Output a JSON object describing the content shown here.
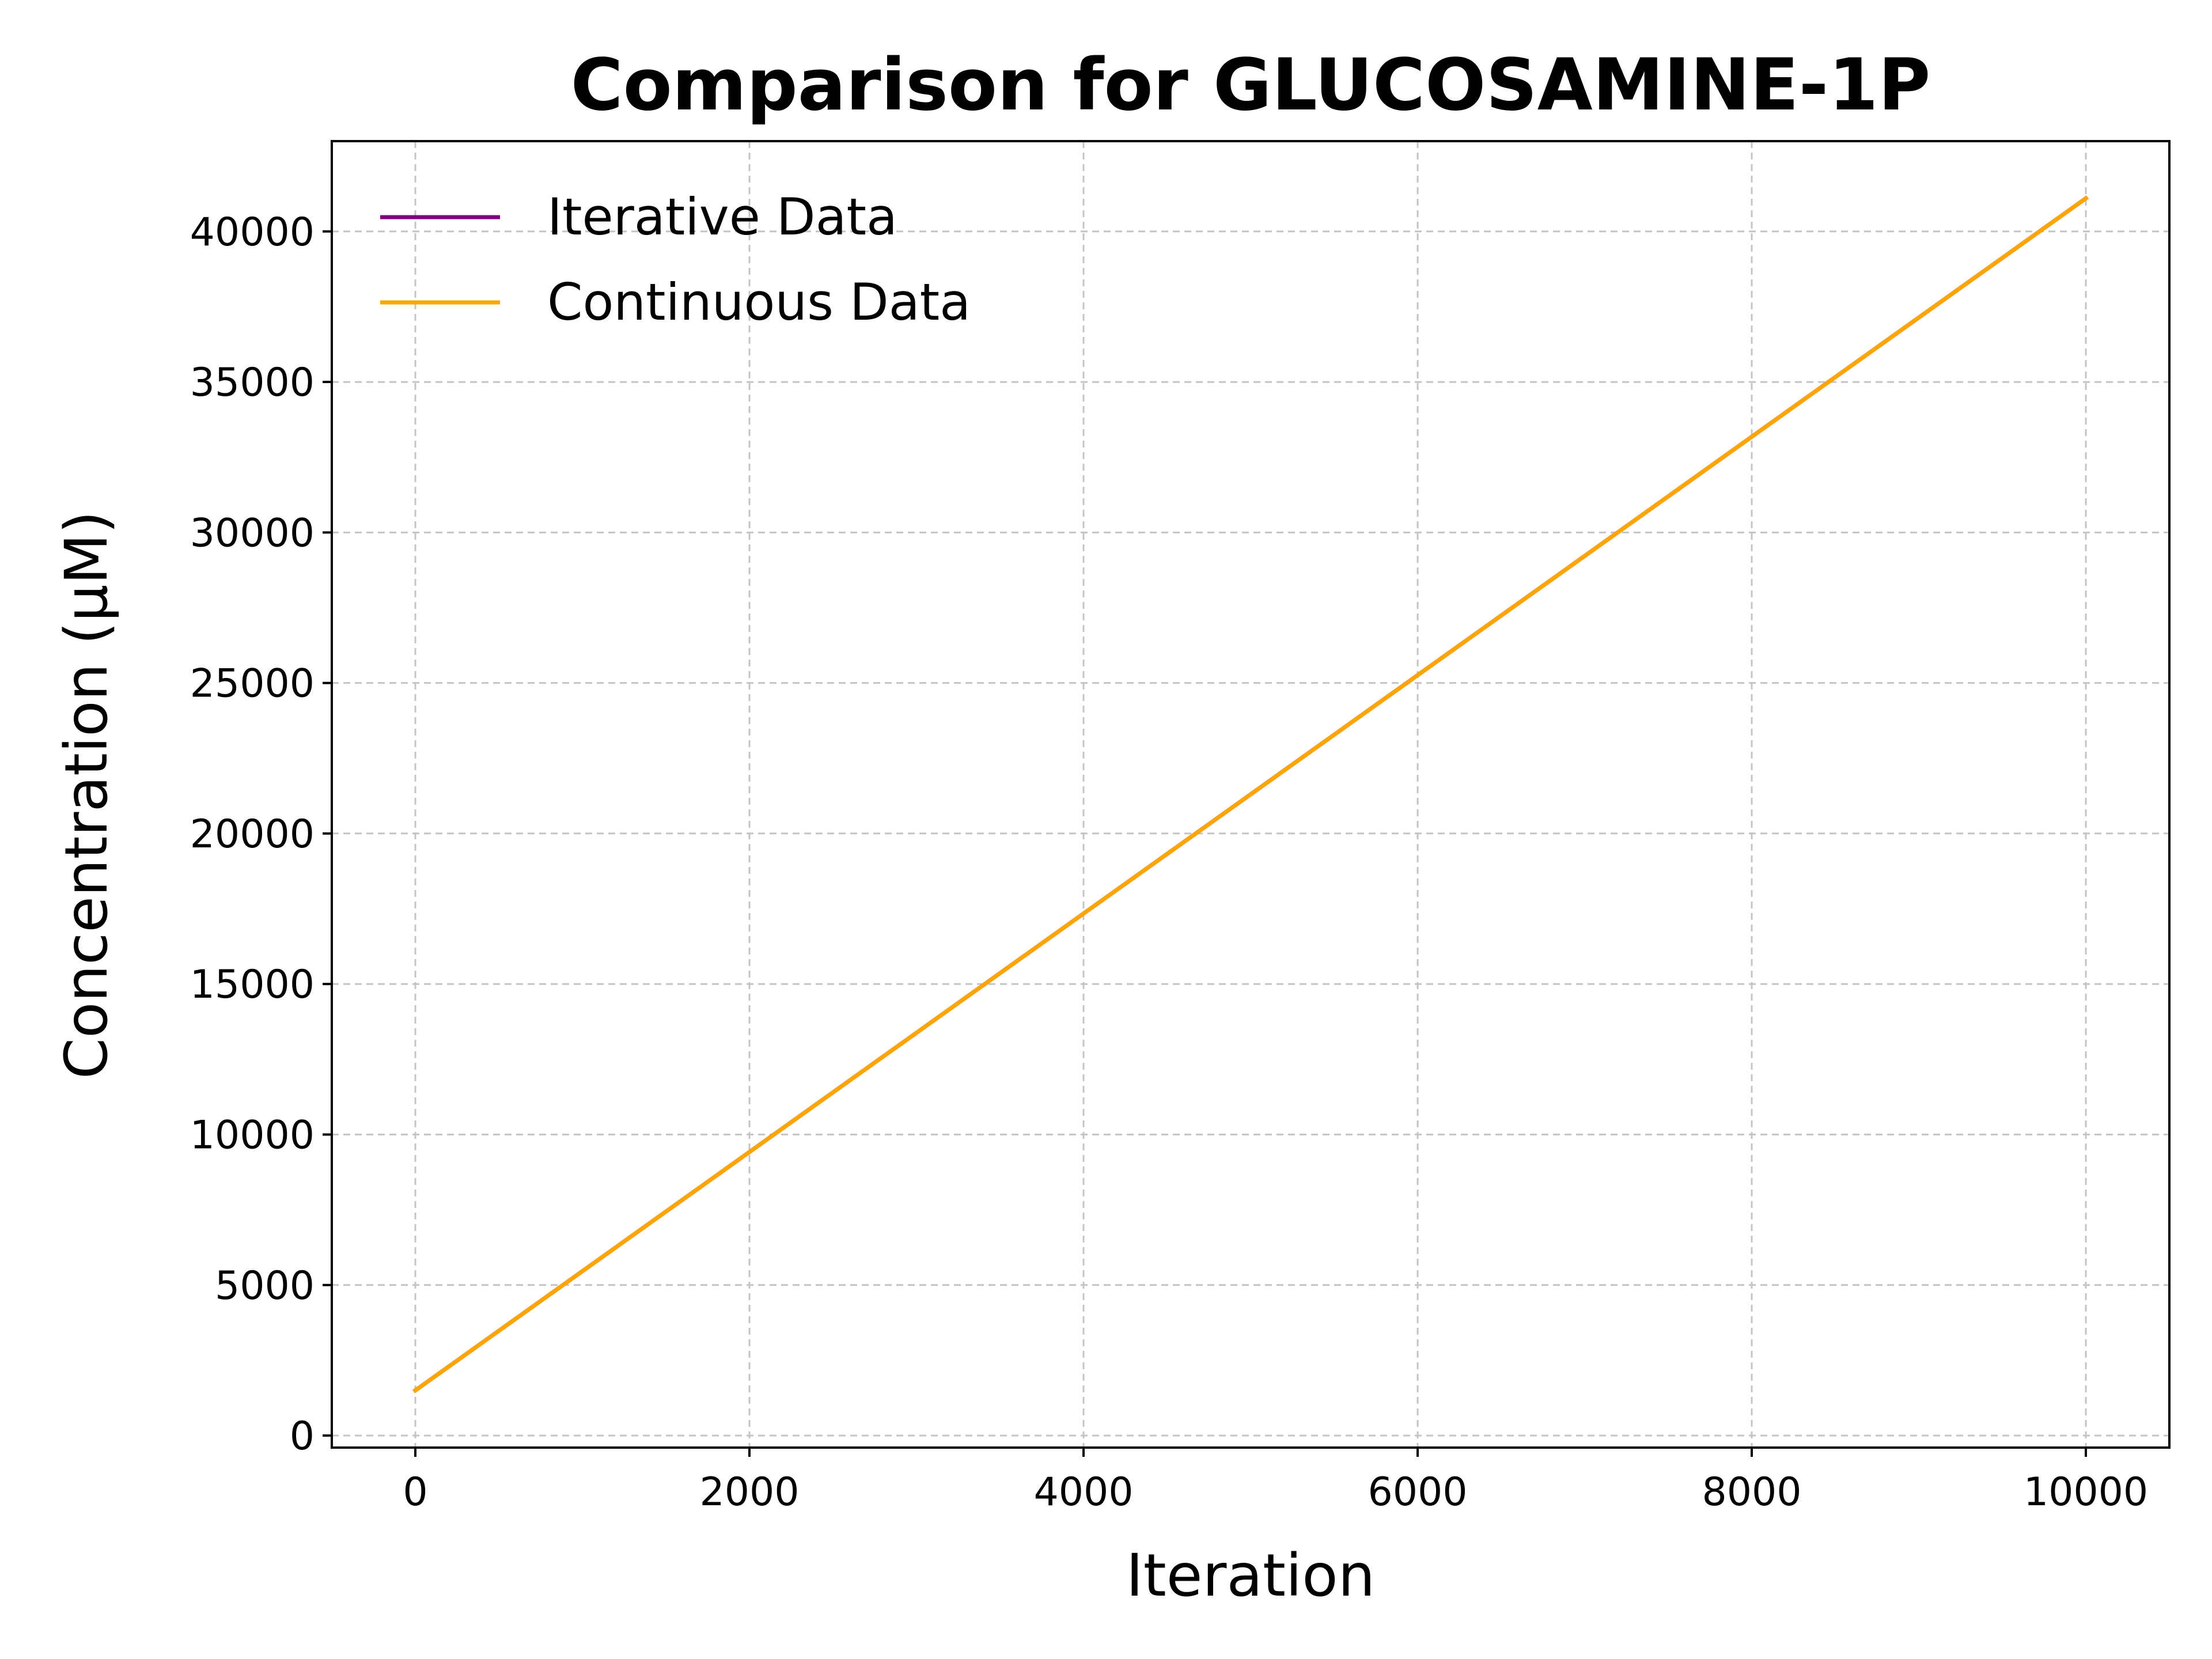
{
  "chart_data": {
    "type": "line",
    "title": "Comparison for GLUCOSAMINE-1P",
    "xlabel": "Iteration",
    "ylabel": "Concentration (μM)",
    "xlim": [
      -500,
      10500
    ],
    "ylim": [
      -400,
      43000
    ],
    "xticks": [
      0,
      2000,
      4000,
      6000,
      8000,
      10000
    ],
    "yticks": [
      0,
      5000,
      10000,
      15000,
      20000,
      25000,
      30000,
      35000,
      40000
    ],
    "grid": true,
    "legend_position": "top-left",
    "series": [
      {
        "name": "Iterative Data",
        "color": "#800080",
        "x": [
          0,
          10000
        ],
        "y": [
          1500,
          41100
        ]
      },
      {
        "name": "Continuous Data",
        "color": "#FFA500",
        "x": [
          0,
          10000
        ],
        "y": [
          1500,
          41100
        ]
      }
    ]
  }
}
